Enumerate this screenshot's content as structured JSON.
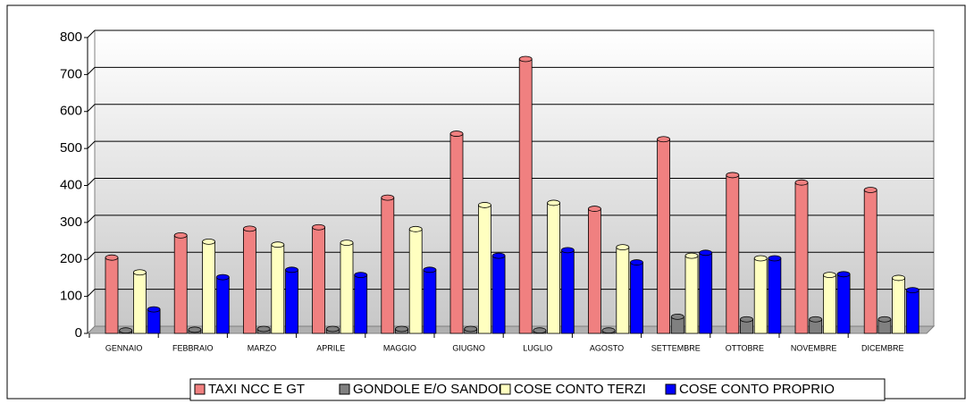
{
  "chart_data": {
    "type": "bar",
    "categories": [
      "GENNAIO",
      "FEBBRAIO",
      "MARZO",
      "APRILE",
      "MAGGIO",
      "GIUGNO",
      "LUGLIO",
      "AGOSTO",
      "SETTEMBRE",
      "OTTOBRE",
      "NOVEMBRE",
      "DICEMBRE"
    ],
    "series": [
      {
        "name": "TAXI NCC E GT",
        "color": "#f08080",
        "values": [
          205,
          265,
          283,
          287,
          367,
          540,
          742,
          337,
          525,
          428,
          408,
          388
        ]
      },
      {
        "name": "GONDOLE E/O SANDOLI",
        "color": "#808080",
        "values": [
          8,
          10,
          12,
          12,
          12,
          12,
          8,
          8,
          45,
          38,
          38,
          38
        ]
      },
      {
        "name": "COSE CONTO TERZI",
        "color": "#ffffc0",
        "values": [
          165,
          248,
          240,
          245,
          282,
          347,
          353,
          233,
          210,
          203,
          158,
          150
        ]
      },
      {
        "name": "COSE CONTO PROPRIO",
        "color": "#0000ff",
        "values": [
          65,
          152,
          172,
          158,
          172,
          210,
          225,
          192,
          218,
          203,
          160,
          117
        ]
      }
    ],
    "ylim": [
      0,
      800
    ],
    "yticks": [
      0,
      100,
      200,
      300,
      400,
      500,
      600,
      700,
      800
    ],
    "grid": true
  }
}
